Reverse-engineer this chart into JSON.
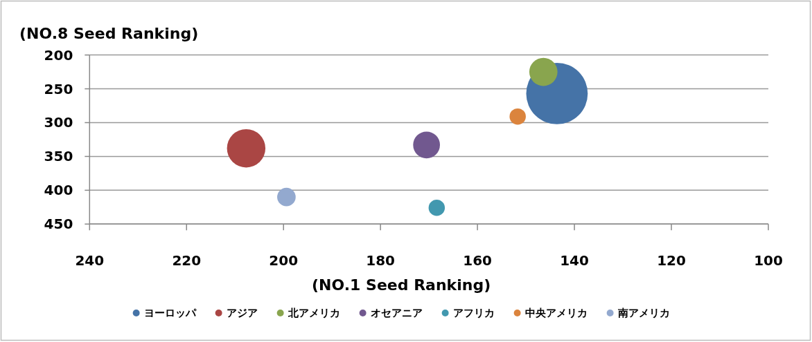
{
  "chart_data": {
    "type": "bubble",
    "ylabel": "(NO.8 Seed Ranking)",
    "xlabel": "(NO.1 Seed Ranking)",
    "xlim": [
      240,
      100
    ],
    "xticks": [
      240,
      220,
      200,
      180,
      160,
      140,
      120,
      100
    ],
    "ylim": [
      450,
      200
    ],
    "yticks": [
      200,
      250,
      300,
      350,
      400,
      450
    ],
    "grid": "y",
    "legend": "bottom",
    "series": [
      {
        "name": "ヨーロッパ",
        "color": "#4573a7",
        "x": [
          143.6
        ],
        "values": [
          257
        ],
        "sizes": [
          1
        ]
      },
      {
        "name": "アジア",
        "color": "#aa4644",
        "x": [
          207.7
        ],
        "values": [
          338
        ],
        "sizes": [
          0.39
        ]
      },
      {
        "name": "北アメリカ",
        "color": "#89a54e",
        "x": [
          146.4
        ],
        "values": [
          225
        ],
        "sizes": [
          0.21
        ]
      },
      {
        "name": "オセアニア",
        "color": "#71588f",
        "x": [
          170.5
        ],
        "values": [
          333
        ],
        "sizes": [
          0.19
        ]
      },
      {
        "name": "アフリカ",
        "color": "#4298af",
        "x": [
          168.4
        ],
        "values": [
          426
        ],
        "sizes": [
          0.07
        ]
      },
      {
        "name": "中央アメリカ",
        "color": "#db843d",
        "x": [
          151.7
        ],
        "values": [
          291
        ],
        "sizes": [
          0.07
        ]
      },
      {
        "name": "南アメリカ",
        "color": "#93a9cf",
        "x": [
          199.4
        ],
        "values": [
          410
        ],
        "sizes": [
          0.09
        ]
      }
    ]
  }
}
